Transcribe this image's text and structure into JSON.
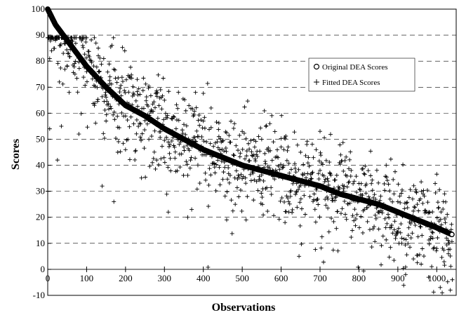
{
  "chart_data": {
    "type": "scatter",
    "xlabel": "Observations",
    "ylabel": "Scores",
    "xlim": [
      0,
      1050
    ],
    "ylim": [
      -10,
      100
    ],
    "x_ticks": [
      0,
      100,
      200,
      300,
      400,
      500,
      600,
      700,
      800,
      900,
      1000
    ],
    "y_ticks": [
      -10,
      0,
      10,
      20,
      30,
      40,
      50,
      60,
      70,
      80,
      90,
      100
    ],
    "grid": "horizontal-dashed",
    "legend_position": "upper-right",
    "n_observations": 1040,
    "series": [
      {
        "name": "Original DEA Scores",
        "marker": "circle",
        "note_curve_anchor_points": [
          [
            0,
            100
          ],
          [
            10,
            97
          ],
          [
            20,
            94
          ],
          [
            40,
            90
          ],
          [
            60,
            86
          ],
          [
            80,
            82
          ],
          [
            100,
            78
          ],
          [
            150,
            70
          ],
          [
            200,
            63
          ],
          [
            250,
            59
          ],
          [
            300,
            54
          ],
          [
            350,
            50
          ],
          [
            400,
            46
          ],
          [
            450,
            43
          ],
          [
            500,
            40
          ],
          [
            550,
            38
          ],
          [
            600,
            36
          ],
          [
            650,
            34
          ],
          [
            700,
            32
          ],
          [
            750,
            29
          ],
          [
            800,
            27
          ],
          [
            850,
            25
          ],
          [
            900,
            22
          ],
          [
            950,
            19
          ],
          [
            1000,
            16
          ],
          [
            1030,
            14
          ],
          [
            1045,
            13
          ]
        ]
      },
      {
        "name": "Fitted DEA Scores",
        "marker": "plus",
        "sample_points": [
          [
            0,
            30
          ],
          [
            5,
            54
          ],
          [
            10,
            84
          ],
          [
            20,
            88
          ],
          [
            25,
            42
          ],
          [
            30,
            72
          ],
          [
            35,
            55
          ],
          [
            40,
            83
          ],
          [
            50,
            78
          ],
          [
            55,
            68
          ],
          [
            60,
            88
          ],
          [
            70,
            75
          ],
          [
            80,
            52
          ],
          [
            90,
            86
          ],
          [
            100,
            76
          ],
          [
            120,
            63
          ],
          [
            130,
            85
          ],
          [
            140,
            32
          ],
          [
            150,
            57
          ],
          [
            160,
            74
          ],
          [
            170,
            26
          ],
          [
            180,
            45
          ],
          [
            200,
            46
          ],
          [
            210,
            74
          ],
          [
            230,
            73
          ],
          [
            240,
            50
          ],
          [
            260,
            50
          ],
          [
            280,
            42
          ],
          [
            290,
            69
          ],
          [
            300,
            65
          ],
          [
            310,
            22
          ],
          [
            350,
            47
          ],
          [
            360,
            20
          ],
          [
            370,
            23
          ],
          [
            380,
            68
          ],
          [
            400,
            57
          ],
          [
            420,
            62
          ],
          [
            440,
            51
          ],
          [
            460,
            19
          ],
          [
            480,
            56
          ],
          [
            500,
            53
          ],
          [
            510,
            19
          ],
          [
            530,
            44
          ],
          [
            550,
            50
          ],
          [
            560,
            31
          ],
          [
            580,
            49
          ],
          [
            600,
            47
          ],
          [
            610,
            18
          ],
          [
            620,
            22
          ],
          [
            640,
            30
          ],
          [
            650,
            45
          ],
          [
            670,
            43
          ],
          [
            690,
            46
          ],
          [
            700,
            38
          ],
          [
            720,
            27
          ],
          [
            750,
            41
          ],
          [
            760,
            31
          ],
          [
            780,
            38
          ],
          [
            800,
            33
          ],
          [
            810,
            14
          ],
          [
            830,
            36
          ],
          [
            850,
            22
          ],
          [
            870,
            40
          ],
          [
            880,
            16
          ],
          [
            890,
            29
          ],
          [
            900,
            26
          ],
          [
            910,
            10
          ],
          [
            920,
            -2
          ],
          [
            940,
            4
          ],
          [
            950,
            25
          ],
          [
            960,
            2
          ],
          [
            980,
            22
          ],
          [
            990,
            12
          ],
          [
            1000,
            8
          ],
          [
            1010,
            16
          ],
          [
            1020,
            29
          ],
          [
            1030,
            6
          ],
          [
            1035,
            -8
          ],
          [
            1040,
            -4
          ]
        ]
      }
    ]
  }
}
